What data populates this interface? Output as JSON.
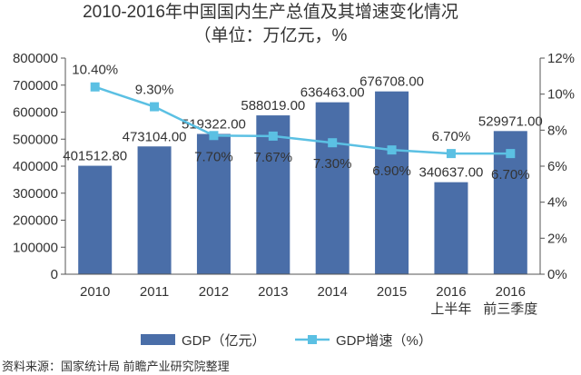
{
  "title": "2010-2016年中国国内生产总值及其增速变化情况",
  "subtitle": "（单位：万亿元，%",
  "source": "资料来源：国家统计局 前瞻产业研究院整理",
  "colors": {
    "bar": "#4a6ea8",
    "line": "#5bc0e3",
    "axis": "#555555"
  },
  "chart_data": {
    "type": "bar+line",
    "categories": [
      {
        "top": "2010",
        "bottom": ""
      },
      {
        "top": "2011",
        "bottom": ""
      },
      {
        "top": "2012",
        "bottom": ""
      },
      {
        "top": "2013",
        "bottom": ""
      },
      {
        "top": "2014",
        "bottom": ""
      },
      {
        "top": "2015",
        "bottom": ""
      },
      {
        "top": "2016",
        "bottom": "上半年"
      },
      {
        "top": "2016",
        "bottom": "前三季度"
      }
    ],
    "y_left": {
      "min": 0,
      "max": 800000,
      "ticks": [
        "0",
        "100000",
        "200000",
        "300000",
        "400000",
        "500000",
        "600000",
        "700000",
        "800000"
      ]
    },
    "y_right": {
      "min": 0,
      "max": 12,
      "ticks": [
        "0%",
        "2%",
        "4%",
        "6%",
        "8%",
        "10%",
        "12%"
      ]
    },
    "series": [
      {
        "name": "GDP（亿元）",
        "type": "bar",
        "axis": "left",
        "values": [
          401512.8,
          473104.0,
          519322.0,
          588019.0,
          636463.0,
          676708.0,
          340637.0,
          529971.0
        ],
        "labels": [
          "401512.80",
          "473104.00",
          "519322.00",
          "588019.00",
          "636463.00",
          "676708.00",
          "340637.00",
          "529971.00"
        ]
      },
      {
        "name": "GDP增速（%）",
        "type": "line",
        "axis": "right",
        "values": [
          10.4,
          9.3,
          7.7,
          7.67,
          7.3,
          6.9,
          6.7,
          6.7
        ],
        "labels": [
          "10.40%",
          "9.30%",
          "7.70%",
          "7.67%",
          "7.30%",
          "6.90%",
          "6.70%",
          "6.70%"
        ]
      }
    ]
  }
}
